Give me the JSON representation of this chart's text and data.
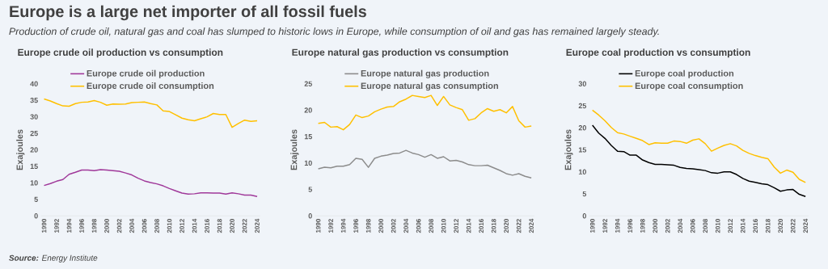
{
  "chart_data": [
    {
      "type": "line",
      "title": "Europe crude oil production vs consumption",
      "ylabel": "Exajoules",
      "annotations": [
        "Europe is a large net importer of all fossil fuels",
        "Production of crude oil, natural gas and coal has slumped to historic lows in Europe, while consumption of oil and gas has remained largely steady.",
        "**Source:**  Energy Institute"
      ],
      "x": [
        1990,
        1991,
        1992,
        1993,
        1994,
        1995,
        1996,
        1997,
        1998,
        1999,
        2000,
        2001,
        2002,
        2003,
        2004,
        2005,
        2006,
        2007,
        2008,
        2009,
        2010,
        2011,
        2012,
        2013,
        2014,
        2015,
        2016,
        2017,
        2018,
        2019,
        2020,
        2021,
        2022,
        2023,
        2024
      ],
      "xlim": [
        1989.5,
        2024.5
      ],
      "xticks": [
        1990,
        1992,
        1994,
        1996,
        1998,
        2000,
        2002,
        2004,
        2006,
        2008,
        2010,
        2012,
        2014,
        2016,
        2018,
        2020,
        2022,
        2024
      ],
      "ylim": [
        0,
        40
      ],
      "yticks": [
        0,
        5,
        10,
        15,
        20,
        25,
        30,
        35,
        40
      ],
      "legend": "top",
      "series": [
        {
          "name": "Europe crude oil production",
          "color": "#a0399a",
          "values": [
            9.2,
            9.8,
            10.5,
            11.0,
            12.6,
            13.2,
            13.9,
            13.9,
            13.7,
            14.0,
            13.9,
            13.7,
            13.5,
            13.0,
            12.4,
            11.4,
            10.6,
            10.1,
            9.7,
            9.1,
            8.3,
            7.6,
            6.9,
            6.6,
            6.7,
            7.0,
            7.0,
            6.9,
            6.9,
            6.6,
            7.0,
            6.7,
            6.3,
            6.3,
            5.9
          ]
        },
        {
          "name": "Europe crude oil consumption",
          "color": "#ffc000",
          "values": [
            35.4,
            34.8,
            34.0,
            33.3,
            33.2,
            34.0,
            34.4,
            34.5,
            34.9,
            34.4,
            33.5,
            33.9,
            33.8,
            33.9,
            34.3,
            34.4,
            34.5,
            34.0,
            33.6,
            31.8,
            31.6,
            30.6,
            29.6,
            29.1,
            28.8,
            29.4,
            30.0,
            31.0,
            30.7,
            30.7,
            26.8,
            28.0,
            29.0,
            28.6,
            28.8
          ]
        }
      ]
    },
    {
      "type": "line",
      "title": "Europe natural gas production vs consumption",
      "ylabel": "Exajoules",
      "x": [
        1990,
        1991,
        1992,
        1993,
        1994,
        1995,
        1996,
        1997,
        1998,
        1999,
        2000,
        2001,
        2002,
        2003,
        2004,
        2005,
        2006,
        2007,
        2008,
        2009,
        2010,
        2011,
        2012,
        2013,
        2014,
        2015,
        2016,
        2017,
        2018,
        2019,
        2020,
        2021,
        2022,
        2023,
        2024
      ],
      "xlim": [
        1989.5,
        2024.5
      ],
      "xticks": [
        1990,
        1992,
        1994,
        1996,
        1998,
        2000,
        2002,
        2004,
        2006,
        2008,
        2010,
        2012,
        2014,
        2016,
        2018,
        2020,
        2022,
        2024
      ],
      "ylim": [
        0,
        25
      ],
      "yticks": [
        0,
        5,
        10,
        15,
        20,
        25
      ],
      "legend": "top",
      "series": [
        {
          "name": "Europe natural gas production",
          "color": "#8c8c8c",
          "values": [
            8.9,
            9.2,
            9.1,
            9.4,
            9.4,
            9.7,
            10.9,
            10.7,
            9.2,
            10.9,
            11.3,
            11.5,
            11.8,
            11.9,
            12.4,
            11.9,
            11.6,
            11.1,
            11.6,
            10.9,
            11.2,
            10.4,
            10.5,
            10.2,
            9.7,
            9.5,
            9.5,
            9.6,
            9.1,
            8.6,
            8.0,
            7.7,
            8.0,
            7.5,
            7.2
          ]
        },
        {
          "name": "Europe natural gas consumption",
          "color": "#ffc000",
          "values": [
            17.5,
            17.7,
            16.8,
            16.9,
            16.3,
            17.3,
            19.1,
            18.6,
            18.9,
            19.7,
            20.2,
            20.6,
            20.7,
            21.6,
            22.1,
            22.8,
            22.6,
            22.4,
            22.8,
            20.9,
            22.6,
            21.0,
            20.5,
            20.1,
            18.1,
            18.4,
            19.5,
            20.3,
            19.8,
            20.1,
            19.5,
            20.7,
            18.0,
            16.8,
            17.0
          ]
        }
      ]
    },
    {
      "type": "line",
      "title": "Europe coal production vs consumption",
      "ylabel": "Exajoules",
      "x": [
        1990,
        1991,
        1992,
        1993,
        1994,
        1995,
        1996,
        1997,
        1998,
        1999,
        2000,
        2001,
        2002,
        2003,
        2004,
        2005,
        2006,
        2007,
        2008,
        2009,
        2010,
        2011,
        2012,
        2013,
        2014,
        2015,
        2016,
        2017,
        2018,
        2019,
        2020,
        2021,
        2022,
        2023,
        2024
      ],
      "xlim": [
        1989.5,
        2024.5
      ],
      "xticks": [
        1990,
        1992,
        1994,
        1996,
        1998,
        2000,
        2002,
        2004,
        2006,
        2008,
        2010,
        2012,
        2014,
        2016,
        2018,
        2020,
        2022,
        2024
      ],
      "ylim": [
        0,
        30
      ],
      "yticks": [
        0,
        5,
        10,
        15,
        20,
        25,
        30
      ],
      "legend": "top",
      "series": [
        {
          "name": "Europe coal production",
          "color": "#000000",
          "values": [
            20.6,
            18.8,
            17.6,
            16.0,
            14.7,
            14.6,
            13.8,
            13.8,
            12.7,
            12.1,
            11.7,
            11.7,
            11.6,
            11.5,
            11.0,
            10.8,
            10.7,
            10.5,
            10.3,
            9.8,
            9.7,
            10.0,
            10.0,
            9.4,
            8.5,
            7.9,
            7.6,
            7.3,
            7.1,
            6.4,
            5.6,
            5.9,
            6.0,
            4.9,
            4.4
          ]
        },
        {
          "name": "Europe coal consumption",
          "color": "#ffc000",
          "values": [
            24.0,
            22.9,
            21.6,
            20.1,
            18.9,
            18.6,
            18.1,
            17.6,
            17.1,
            16.2,
            16.6,
            16.5,
            16.5,
            17.0,
            16.9,
            16.5,
            17.2,
            17.5,
            16.4,
            14.7,
            15.4,
            16.0,
            16.4,
            15.9,
            14.9,
            14.2,
            13.7,
            13.3,
            13.0,
            11.1,
            9.7,
            10.4,
            9.9,
            8.3,
            7.6
          ]
        }
      ]
    }
  ]
}
